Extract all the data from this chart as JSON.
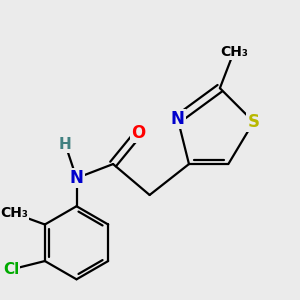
{
  "background_color": "#ebebeb",
  "bond_color": "#000000",
  "bond_lw": 1.6,
  "atoms": {
    "S": {
      "color": "#b8b800",
      "fontsize": 12
    },
    "N": {
      "color": "#0000cc",
      "fontsize": 12
    },
    "O": {
      "color": "#ff0000",
      "fontsize": 12
    },
    "Cl": {
      "color": "#00aa00",
      "fontsize": 11
    },
    "CH3_thiazole": {
      "color": "#000000",
      "fontsize": 10
    },
    "CH3_phenyl": {
      "color": "#000000",
      "fontsize": 10
    },
    "H": {
      "color": "#408080",
      "fontsize": 11
    }
  },
  "figsize": [
    3.0,
    3.0
  ],
  "dpi": 100
}
